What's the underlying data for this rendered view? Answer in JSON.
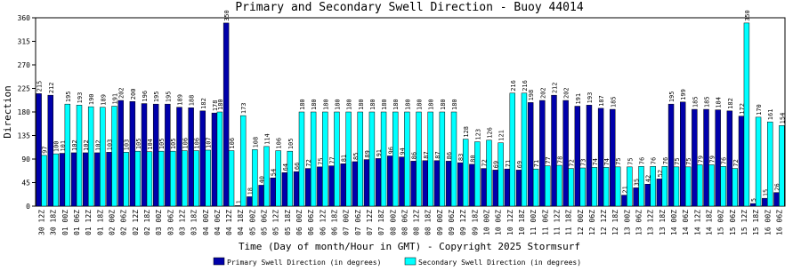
{
  "chart_data": {
    "type": "bar",
    "title": "Primary and Secondary Swell Direction - Buoy 44014",
    "x_label": "Time (Day of month/Hour in GMT) - Copyright 2025 Stormsurf",
    "y_label": "Direction",
    "categories": [
      "30 12Z",
      "30 18Z",
      "01 00Z",
      "01 06Z",
      "01 12Z",
      "01 18Z",
      "02 00Z",
      "02 06Z",
      "02 12Z",
      "02 18Z",
      "03 00Z",
      "03 06Z",
      "03 12Z",
      "03 18Z",
      "04 00Z",
      "04 06Z",
      "04 12Z",
      "04 18Z",
      "05 00Z",
      "05 06Z",
      "05 12Z",
      "05 18Z",
      "06 00Z",
      "06 06Z",
      "06 12Z",
      "06 18Z",
      "07 00Z",
      "07 06Z",
      "07 12Z",
      "07 18Z",
      "08 00Z",
      "08 06Z",
      "08 12Z",
      "08 18Z",
      "09 00Z",
      "09 06Z",
      "09 12Z",
      "09 18Z",
      "10 00Z",
      "10 06Z",
      "10 12Z",
      "10 18Z",
      "11 00Z",
      "11 06Z",
      "11 12Z",
      "11 18Z",
      "12 00Z",
      "12 06Z",
      "12 12Z",
      "12 18Z",
      "13 00Z",
      "13 06Z",
      "13 12Z",
      "13 18Z",
      "14 00Z",
      "14 06Z",
      "14 12Z",
      "14 18Z",
      "15 00Z",
      "15 06Z",
      "15 12Z",
      "15 18Z",
      "16 00Z",
      "16 06Z"
    ],
    "series": [
      {
        "name": "Primary Swell Direction (in degrees)",
        "color": "#0000aa",
        "values": [
          215,
          212,
          101,
          102,
          102,
          102,
          103,
          202,
          200,
          196,
          195,
          195,
          189,
          188,
          182,
          178,
          350,
          1,
          18,
          40,
          54,
          64,
          66,
          72,
          75,
          77,
          81,
          85,
          89,
          91,
          96,
          94,
          86,
          87,
          87,
          86,
          83,
          80,
          72,
          69,
          71,
          69,
          198,
          202,
          212,
          202,
          191,
          193,
          187,
          185,
          21,
          35,
          42,
          52,
          195,
          199,
          185,
          185,
          184,
          182,
          172,
          5,
          15,
          26
        ]
      },
      {
        "name": "Secondary Swell Direction (in degrees)",
        "color": "#00ffff",
        "values": [
          97,
          100,
          195,
          193,
          190,
          189,
          191,
          103,
          105,
          104,
          105,
          105,
          106,
          106,
          107,
          180,
          106,
          173,
          108,
          114,
          106,
          105,
          180,
          180,
          180,
          180,
          180,
          180,
          180,
          180,
          180,
          180,
          180,
          180,
          180,
          180,
          128,
          123,
          126,
          121,
          216,
          216,
          71,
          77,
          78,
          72,
          73,
          74,
          74,
          75,
          75,
          76,
          76,
          76,
          75,
          75,
          79,
          79,
          76,
          72,
          350,
          170,
          161,
          154
        ]
      }
    ],
    "ylim": [
      0,
      360
    ],
    "yticks": [
      0,
      45,
      90,
      135,
      180,
      225,
      270,
      315,
      360
    ]
  }
}
